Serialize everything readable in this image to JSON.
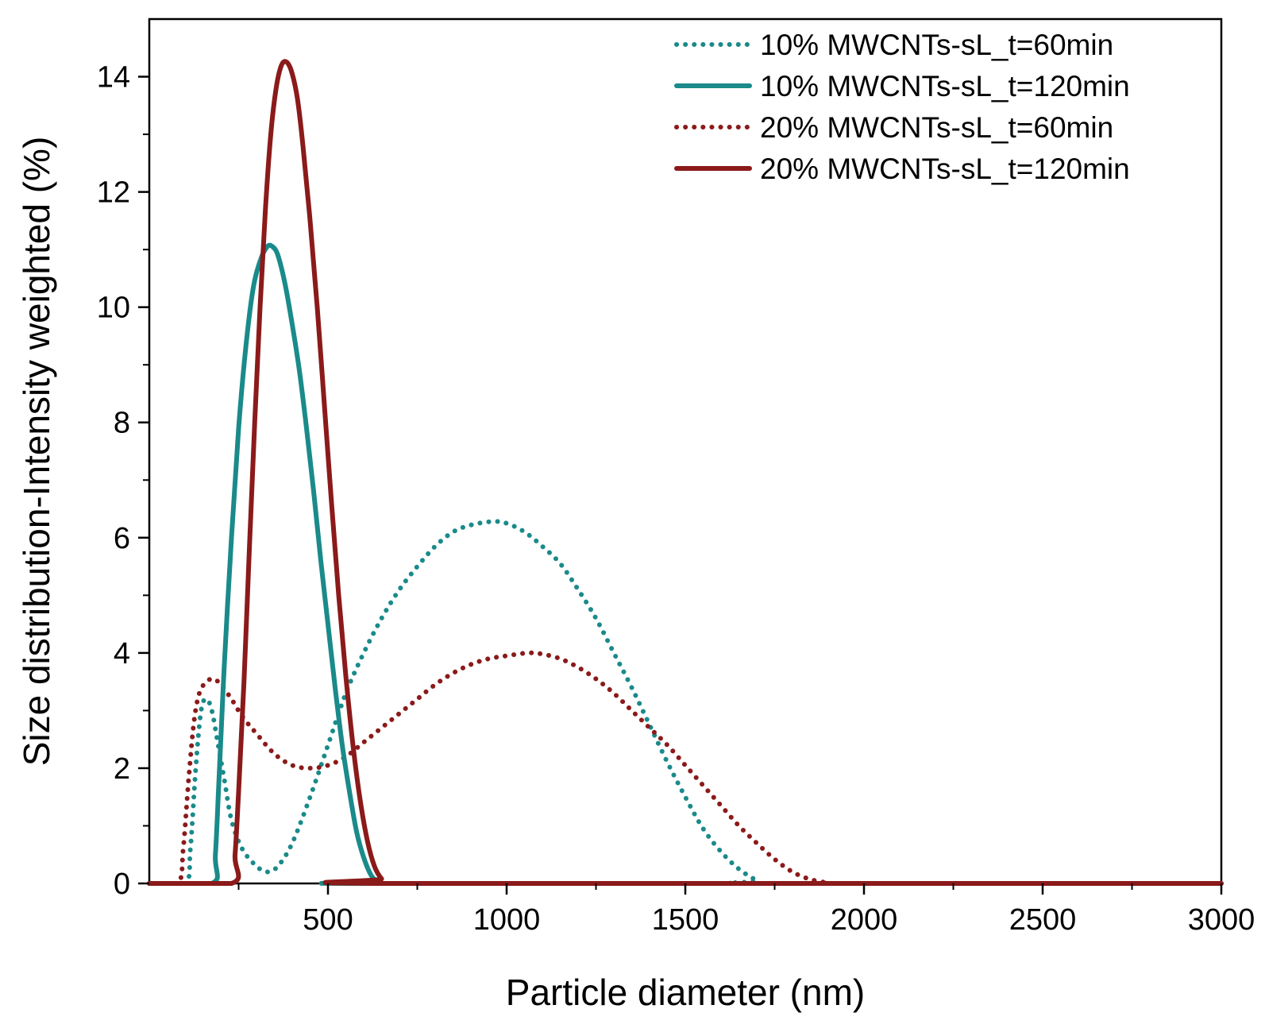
{
  "chart_data": {
    "type": "line",
    "title": "",
    "xlabel": "Particle diameter (nm)",
    "ylabel": "Size distribution-Intensity weighted (%)",
    "xlim": [
      0,
      3000
    ],
    "ylim": [
      0,
      15
    ],
    "xticks": [
      500,
      1000,
      1500,
      2000,
      2500,
      3000
    ],
    "xticks_minor": [
      250,
      750,
      1250,
      1750,
      2250,
      2750
    ],
    "yticks": [
      0,
      2,
      4,
      6,
      8,
      10,
      12,
      14
    ],
    "yticks_minor": [
      1,
      3,
      5,
      7,
      9,
      11,
      13
    ],
    "legend": "top-right",
    "grid": false,
    "series": [
      {
        "name": "10% MWCNTs-sL_t=60min",
        "color": "#1a8a8a",
        "style": "dotted",
        "points": [
          [
            0,
            0
          ],
          [
            100,
            0
          ],
          [
            115,
            0.6
          ],
          [
            130,
            2.0
          ],
          [
            145,
            3.0
          ],
          [
            160,
            3.2
          ],
          [
            175,
            3.0
          ],
          [
            190,
            2.5
          ],
          [
            210,
            1.8
          ],
          [
            230,
            1.1
          ],
          [
            260,
            0.6
          ],
          [
            300,
            0.3
          ],
          [
            330,
            0.2
          ],
          [
            360,
            0.3
          ],
          [
            400,
            0.7
          ],
          [
            450,
            1.5
          ],
          [
            500,
            2.4
          ],
          [
            550,
            3.3
          ],
          [
            600,
            4.0
          ],
          [
            650,
            4.6
          ],
          [
            700,
            5.1
          ],
          [
            750,
            5.5
          ],
          [
            800,
            5.85
          ],
          [
            850,
            6.1
          ],
          [
            900,
            6.22
          ],
          [
            960,
            6.28
          ],
          [
            1000,
            6.25
          ],
          [
            1050,
            6.1
          ],
          [
            1100,
            5.85
          ],
          [
            1150,
            5.55
          ],
          [
            1200,
            5.1
          ],
          [
            1250,
            4.6
          ],
          [
            1300,
            4.0
          ],
          [
            1350,
            3.4
          ],
          [
            1400,
            2.75
          ],
          [
            1450,
            2.1
          ],
          [
            1500,
            1.5
          ],
          [
            1550,
            0.95
          ],
          [
            1600,
            0.55
          ],
          [
            1650,
            0.25
          ],
          [
            1700,
            0.05
          ],
          [
            1720,
            0
          ],
          [
            3000,
            0
          ]
        ]
      },
      {
        "name": "10% MWCNTs-sL_t=120min",
        "color": "#1a8a8a",
        "style": "solid",
        "points": [
          [
            0,
            0
          ],
          [
            175,
            0
          ],
          [
            185,
            0.5
          ],
          [
            195,
            1.8
          ],
          [
            210,
            3.8
          ],
          [
            230,
            6.0
          ],
          [
            250,
            7.9
          ],
          [
            270,
            9.3
          ],
          [
            290,
            10.3
          ],
          [
            310,
            10.8
          ],
          [
            330,
            11.05
          ],
          [
            345,
            11.05
          ],
          [
            360,
            10.9
          ],
          [
            380,
            10.4
          ],
          [
            400,
            9.7
          ],
          [
            420,
            8.9
          ],
          [
            440,
            7.9
          ],
          [
            460,
            6.8
          ],
          [
            480,
            5.6
          ],
          [
            500,
            4.5
          ],
          [
            520,
            3.4
          ],
          [
            540,
            2.4
          ],
          [
            560,
            1.6
          ],
          [
            580,
            0.9
          ],
          [
            600,
            0.45
          ],
          [
            620,
            0.15
          ],
          [
            640,
            0.02
          ],
          [
            660,
            0
          ],
          [
            3000,
            0
          ]
        ]
      },
      {
        "name": "20% MWCNTs-sL_t=60min",
        "color": "#8b1a1a",
        "style": "dotted",
        "points": [
          [
            0,
            0
          ],
          [
            80,
            0
          ],
          [
            95,
            0.6
          ],
          [
            110,
            1.8
          ],
          [
            125,
            2.8
          ],
          [
            140,
            3.3
          ],
          [
            160,
            3.5
          ],
          [
            180,
            3.55
          ],
          [
            200,
            3.45
          ],
          [
            230,
            3.2
          ],
          [
            260,
            2.9
          ],
          [
            300,
            2.6
          ],
          [
            350,
            2.25
          ],
          [
            400,
            2.05
          ],
          [
            450,
            2.0
          ],
          [
            500,
            2.05
          ],
          [
            550,
            2.2
          ],
          [
            600,
            2.45
          ],
          [
            650,
            2.7
          ],
          [
            700,
            2.95
          ],
          [
            750,
            3.2
          ],
          [
            800,
            3.45
          ],
          [
            850,
            3.65
          ],
          [
            900,
            3.8
          ],
          [
            950,
            3.9
          ],
          [
            1000,
            3.95
          ],
          [
            1060,
            4.0
          ],
          [
            1100,
            3.98
          ],
          [
            1150,
            3.9
          ],
          [
            1200,
            3.75
          ],
          [
            1250,
            3.55
          ],
          [
            1300,
            3.3
          ],
          [
            1350,
            3.0
          ],
          [
            1400,
            2.7
          ],
          [
            1450,
            2.4
          ],
          [
            1500,
            2.05
          ],
          [
            1550,
            1.7
          ],
          [
            1600,
            1.35
          ],
          [
            1650,
            1.0
          ],
          [
            1700,
            0.7
          ],
          [
            1750,
            0.42
          ],
          [
            1800,
            0.2
          ],
          [
            1850,
            0.07
          ],
          [
            1900,
            0.01
          ],
          [
            1920,
            0
          ],
          [
            3000,
            0
          ]
        ]
      },
      {
        "name": "20% MWCNTs-sL_t=120min",
        "color": "#8b1a1a",
        "style": "solid",
        "points": [
          [
            0,
            0
          ],
          [
            230,
            0
          ],
          [
            240,
            0.5
          ],
          [
            250,
            1.6
          ],
          [
            265,
            3.5
          ],
          [
            280,
            5.8
          ],
          [
            295,
            8.0
          ],
          [
            310,
            10.0
          ],
          [
            325,
            11.7
          ],
          [
            340,
            13.0
          ],
          [
            355,
            13.8
          ],
          [
            370,
            14.2
          ],
          [
            385,
            14.25
          ],
          [
            400,
            14.05
          ],
          [
            415,
            13.6
          ],
          [
            430,
            12.8
          ],
          [
            450,
            11.5
          ],
          [
            470,
            10.0
          ],
          [
            490,
            8.3
          ],
          [
            510,
            6.6
          ],
          [
            530,
            5.0
          ],
          [
            550,
            3.6
          ],
          [
            570,
            2.4
          ],
          [
            590,
            1.45
          ],
          [
            610,
            0.75
          ],
          [
            630,
            0.3
          ],
          [
            650,
            0.08
          ],
          [
            670,
            0
          ],
          [
            3000,
            0
          ]
        ]
      }
    ]
  }
}
